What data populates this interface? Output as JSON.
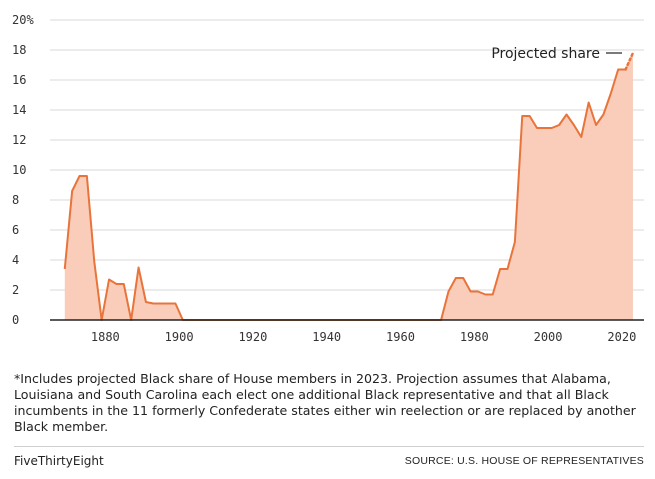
{
  "chart_data": {
    "type": "area",
    "title": "",
    "xlabel": "",
    "ylabel": "",
    "xlim": [
      1865,
      2026
    ],
    "ylim": [
      0,
      20
    ],
    "y_ticks": [
      0,
      2,
      4,
      6,
      8,
      10,
      12,
      14,
      16,
      18,
      20
    ],
    "y_tick_labels": [
      "0",
      "2",
      "4",
      "6",
      "8",
      "10",
      "12",
      "14",
      "16",
      "18",
      "20%"
    ],
    "x_ticks": [
      1880,
      1900,
      1920,
      1940,
      1960,
      1980,
      2000,
      2020
    ],
    "x_tick_labels": [
      "1880",
      "1900",
      "1920",
      "1940",
      "1960",
      "1980",
      "2000",
      "2020"
    ],
    "grid": "horizontal",
    "line_color": "#e8743b",
    "fill_color": "#f9cdb9",
    "series": [
      {
        "x": [
          1869,
          1871,
          1873,
          1875,
          1877,
          1879,
          1881,
          1883,
          1885,
          1887,
          1889,
          1891,
          1893,
          1895,
          1897,
          1899,
          1901,
          1903,
          1971,
          1973,
          1975,
          1977,
          1979,
          1981,
          1983,
          1985,
          1987,
          1989,
          1991,
          1993,
          1995,
          1997,
          1999,
          2001,
          2003,
          2005,
          2007,
          2009,
          2011,
          2013,
          2015,
          2017,
          2019,
          2021
        ],
        "values": [
          3.4,
          8.6,
          9.6,
          9.6,
          3.9,
          0,
          2.7,
          2.4,
          2.4,
          0,
          3.5,
          1.2,
          1.1,
          1.1,
          1.1,
          1.1,
          0,
          0,
          0,
          1.9,
          2.8,
          2.8,
          1.9,
          1.9,
          1.7,
          1.7,
          3.4,
          3.4,
          5.2,
          13.6,
          13.6,
          12.8,
          12.8,
          12.8,
          13.0,
          13.7,
          13.0,
          12.2,
          14.5,
          13.0,
          13.7,
          15.1,
          16.7,
          16.7
        ]
      }
    ],
    "projection": {
      "name": "Projected share",
      "x": [
        2021,
        2023
      ],
      "values": [
        16.7,
        17.8
      ]
    },
    "annotation": "Projected share"
  },
  "footnote": "*Includes projected Black share of House members in 2023. Projection assumes that Alabama, Louisiana and South Carolina each elect one additional Black representative and that all Black incumbents in the 11 formerly Confederate states either win reelection or are replaced by another Black member.",
  "brand": "FiveThirtyEight",
  "source": "SOURCE: U.S. HOUSE OF REPRESENTATIVES"
}
